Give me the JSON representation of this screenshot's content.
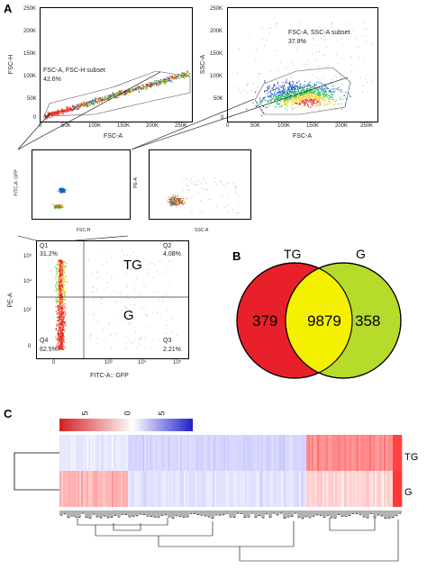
{
  "panels": {
    "a": "A",
    "b": "B",
    "c": "C"
  },
  "flow": {
    "plot1": {
      "y_label": "FSC-H",
      "x_label": "FSC-A",
      "y_ticks": [
        "250K",
        "200K",
        "150K",
        "100K",
        "50K",
        "0"
      ],
      "x_ticks": [
        "0",
        "50K",
        "100K",
        "150K",
        "200K",
        "250K"
      ],
      "gate_name": "FSC-A, FSC-H subset",
      "gate_pct": "42.6%"
    },
    "plot2": {
      "y_label": "SSC-A",
      "x_label": "FSC-A",
      "y_ticks": [
        "250K",
        "200K",
        "150K",
        "100K",
        "50K",
        "0"
      ],
      "x_ticks": [
        "0",
        "50K",
        "100K",
        "150K",
        "200K",
        "250K"
      ],
      "gate_name": "FSC-A, SSC-A subset",
      "gate_pct": "37.8%"
    },
    "plot3": {
      "y_label": "FITC-A: GFP",
      "x_label": "FSC-H"
    },
    "plot4": {
      "y_label": "PE-A",
      "x_label": "SSC-A"
    },
    "plot5": {
      "y_label": "PE-A",
      "x_label": "FITC-A:: GFP",
      "y_ticks": [
        "10⁵",
        "10⁴",
        "10³",
        "0"
      ],
      "x_ticks": [
        "0",
        "10³",
        "10⁴",
        "10⁵"
      ],
      "q1": "Q1",
      "q1_pct": "31.2%",
      "q2": "Q2",
      "q2_pct": "4.08%",
      "q3": "Q3",
      "q3_pct": "2.21%",
      "q4": "Q4",
      "q4_pct": "62.5%",
      "label_tg": "TG",
      "label_g": "G"
    }
  },
  "venn": {
    "set_left": "TG",
    "set_right": "G",
    "only_left": "379",
    "overlap": "9879",
    "only_right": "358",
    "colors": {
      "left": "#e8202a",
      "overlap": "#f5f000",
      "right": "#b6db2a"
    }
  },
  "heatmap": {
    "scale_ticks": [
      "5",
      "0",
      "5"
    ],
    "rows": [
      "TG",
      "G"
    ],
    "colors": {
      "low": "#d42020",
      "mid": "#ffffff",
      "high": "#2020cc"
    }
  }
}
